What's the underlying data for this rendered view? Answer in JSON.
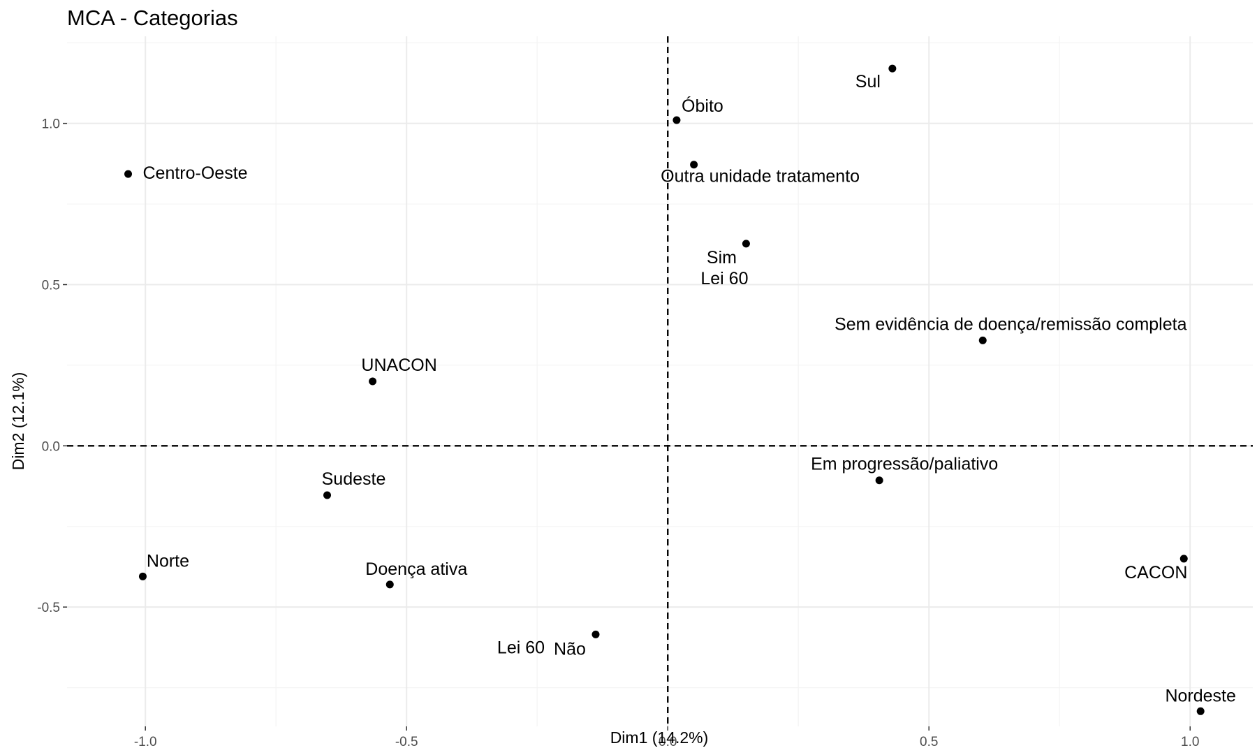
{
  "chart_data": {
    "type": "scatter",
    "title": "MCA - Categorias",
    "xlabel": "Dim1 (14.2%)",
    "ylabel": "Dim2 (12.1%)",
    "xlim": [
      -1.15,
      1.12
    ],
    "ylim": [
      -0.87,
      1.27
    ],
    "xticks": [
      -1.0,
      -0.5,
      0.0,
      0.5,
      1.0
    ],
    "xtick_labels": [
      "-1.0",
      "-0.5",
      "0.0",
      "0.5",
      "1.0"
    ],
    "yticks": [
      -0.5,
      0.0,
      0.5,
      1.0
    ],
    "ytick_labels": [
      "-0.5",
      "0.0",
      "0.5",
      "1.0"
    ],
    "grid": true,
    "reference_lines": {
      "x": 0,
      "y": 0,
      "style": "dashed"
    },
    "points": [
      {
        "label": "Sul",
        "x": 0.43,
        "y": 1.17
      },
      {
        "label": "Óbito",
        "x": 0.017,
        "y": 1.01
      },
      {
        "label": "Centro-Oeste",
        "x": -1.033,
        "y": 0.843
      },
      {
        "label": "Outra unidade tratamento",
        "x": 0.05,
        "y": 0.872
      },
      {
        "label": "Sim",
        "x": 0.15,
        "y": 0.627
      },
      {
        "label": "Lei 60",
        "x": 0.15,
        "y": 0.627
      },
      {
        "label": "Sem evidência de doença/remissão completa",
        "x": 0.603,
        "y": 0.327
      },
      {
        "label": "UNACON",
        "x": -0.565,
        "y": 0.2
      },
      {
        "label": "Em progressão/paliativo",
        "x": 0.405,
        "y": -0.107
      },
      {
        "label": "Sudeste",
        "x": -0.652,
        "y": -0.153
      },
      {
        "label": "CACON",
        "x": 0.988,
        "y": -0.35
      },
      {
        "label": "Norte",
        "x": -1.005,
        "y": -0.405
      },
      {
        "label": "Doença ativa",
        "x": -0.532,
        "y": -0.43
      },
      {
        "label": "Não",
        "x": -0.138,
        "y": -0.585
      },
      {
        "label": "Lei 60",
        "x": -0.138,
        "y": -0.585
      },
      {
        "label": "Nordeste",
        "x": 1.02,
        "y": -0.823
      }
    ]
  }
}
